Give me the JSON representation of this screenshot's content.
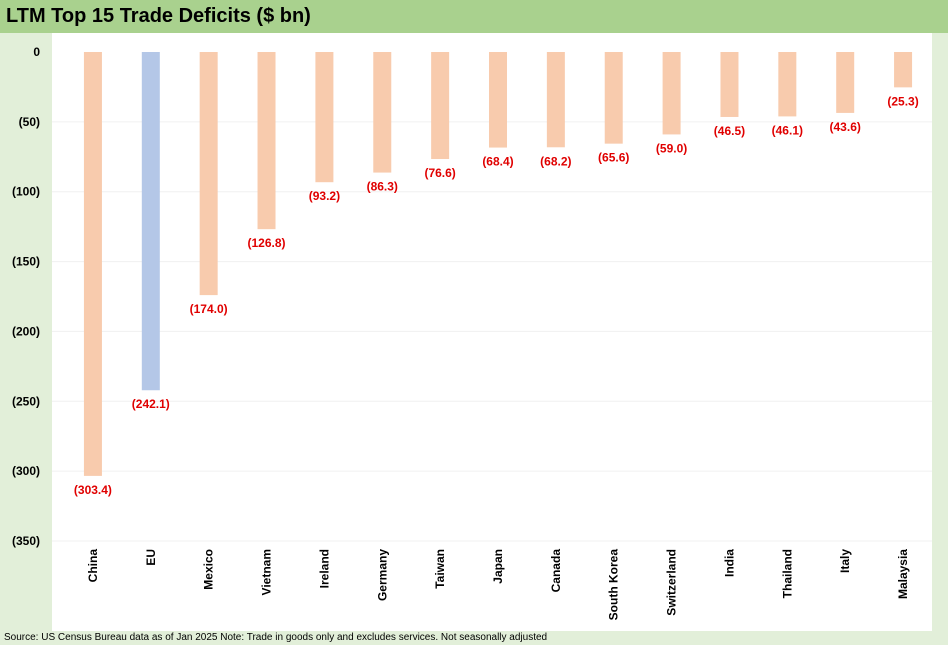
{
  "header": {
    "title": "LTM Top 15 Trade Deficits ($ bn)"
  },
  "footer": {
    "source": "Source: US Census Bureau data as of Jan 2025 Note: Trade in goods only and excludes services. Not seasonally adjusted"
  },
  "colors": {
    "background": "#e2efd9",
    "title_bar": "#a9d18e",
    "plot_area": "#ffffff",
    "bar_default": "#f8cbad",
    "bar_highlight": "#b4c7e7",
    "data_label": "#e00000"
  },
  "chart_data": {
    "type": "bar",
    "title": "LTM Top 15 Trade Deficits ($ bn)",
    "xlabel": "",
    "ylabel": "",
    "categories": [
      "China",
      "EU",
      "Mexico",
      "Vietnam",
      "Ireland",
      "Germany",
      "Taiwan",
      "Japan",
      "Canada",
      "South Korea",
      "Switzerland",
      "India",
      "Thailand",
      "Italy",
      "Malaysia"
    ],
    "values": [
      -303.4,
      -242.1,
      -174.0,
      -126.8,
      -93.2,
      -86.3,
      -76.6,
      -68.4,
      -68.2,
      -65.6,
      -59.0,
      -46.5,
      -46.1,
      -43.6,
      -25.3
    ],
    "data_labels": [
      "(303.4)",
      "(242.1)",
      "(174.0)",
      "(126.8)",
      "(93.2)",
      "(86.3)",
      "(76.6)",
      "(68.4)",
      "(68.2)",
      "(65.6)",
      "(59.0)",
      "(46.5)",
      "(46.1)",
      "(43.6)",
      "(25.3)"
    ],
    "highlight_categories": [
      "EU"
    ],
    "ylim": [
      -350,
      0
    ],
    "y_ticks": [
      0,
      -50,
      -100,
      -150,
      -200,
      -250,
      -300,
      -350
    ],
    "y_tick_labels": [
      "0",
      "(50)",
      "(100)",
      "(150)",
      "(200)",
      "(250)",
      "(300)",
      "(350)"
    ],
    "grid": true,
    "legend": "none"
  }
}
